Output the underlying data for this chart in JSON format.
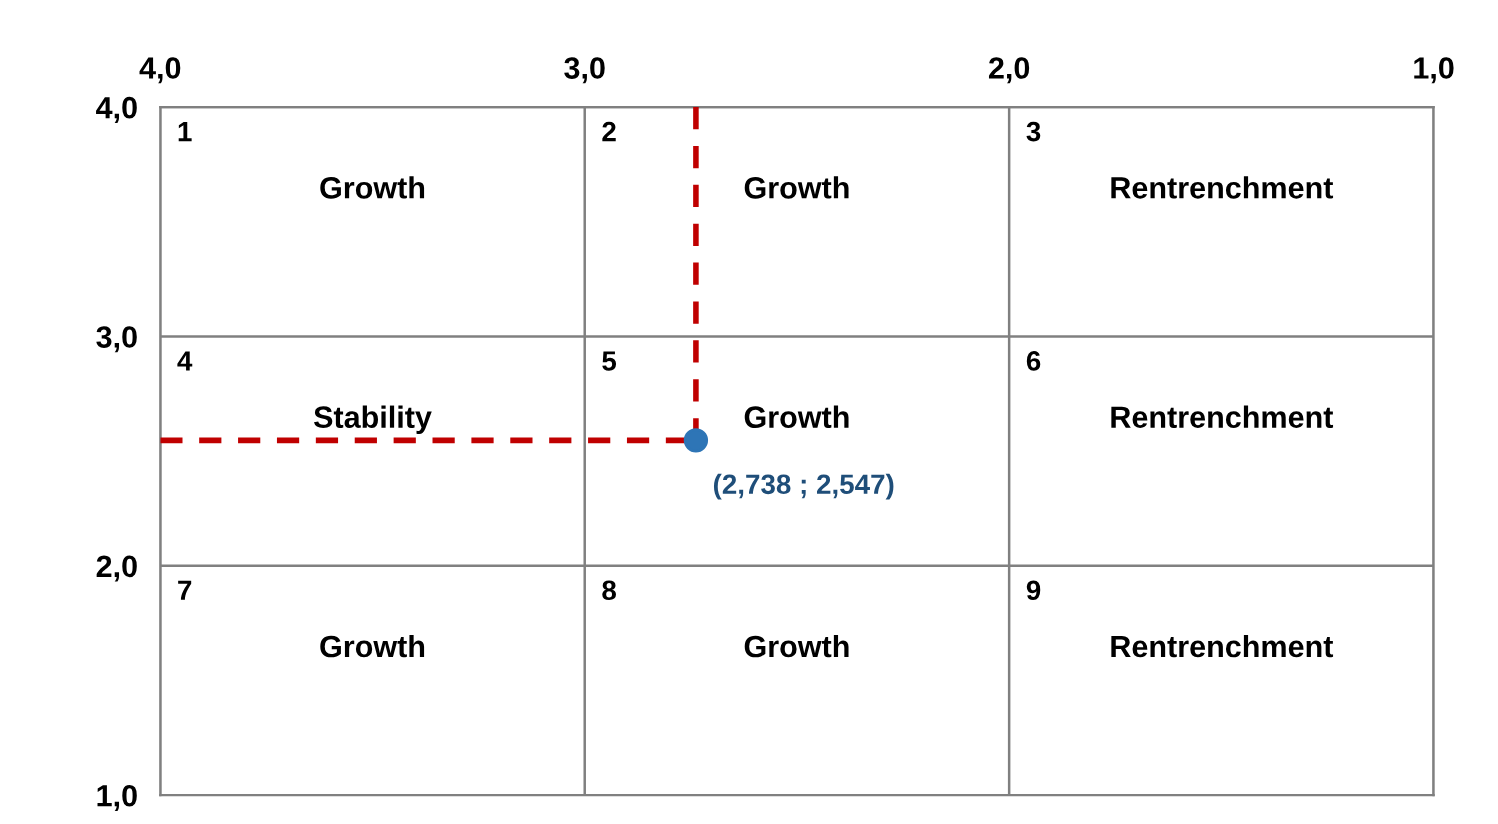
{
  "chart_data": {
    "type": "scatter",
    "x": [
      2.738
    ],
    "values": [
      2.547
    ],
    "color": "#2e75b6",
    "marker": "circle",
    "xlim": [
      4.0,
      1.0
    ],
    "ylim": [
      1.0,
      4.0
    ],
    "xticks": [
      {
        "value": 4.0,
        "label": "4,0"
      },
      {
        "value": 3.0,
        "label": "3,0"
      },
      {
        "value": 2.0,
        "label": "2,0"
      },
      {
        "value": 1.0,
        "label": "1,0"
      }
    ],
    "yticks": [
      {
        "value": 4.0,
        "label": "4,0"
      },
      {
        "value": 3.0,
        "label": "3,0"
      },
      {
        "value": 2.0,
        "label": "2,0"
      },
      {
        "value": 1.0,
        "label": "1,0"
      }
    ],
    "grid": true,
    "ref_lines": [
      {
        "axis": "x",
        "value": 2.738,
        "label": null,
        "color": "#c00000",
        "line_style": "dashed"
      },
      {
        "axis": "y",
        "value": 2.547,
        "label": null,
        "color": "#c00000",
        "line_style": "dashed"
      }
    ],
    "annotations": [
      {
        "text": "(2,738 ; 2,547)",
        "x": 2.738,
        "y": 2.547
      },
      "1",
      "Growth",
      "2",
      "Growth",
      "3",
      "Rentrenchment",
      "4",
      "Stability",
      "5",
      "Growth",
      "6",
      "Rentrenchment",
      "7",
      "Growth",
      "8",
      "Growth",
      "9",
      "Rentrenchment"
    ]
  }
}
